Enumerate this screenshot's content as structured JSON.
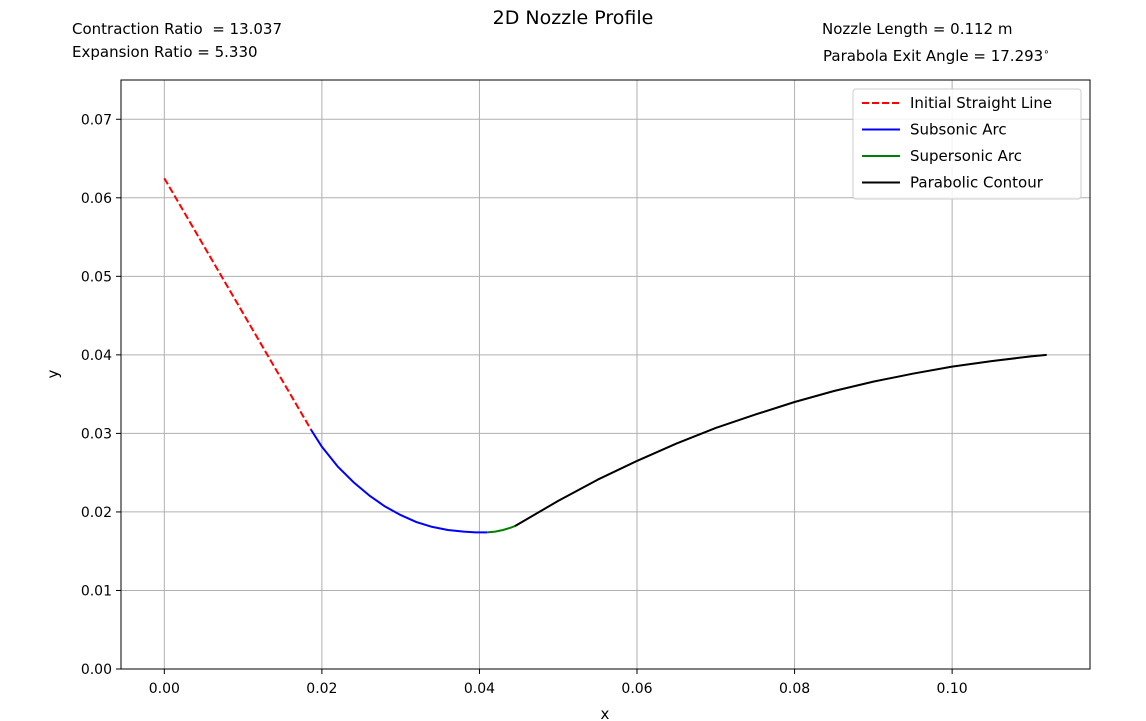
{
  "chart_data": {
    "type": "line",
    "title": "2D Nozzle Profile",
    "xlabel": "x",
    "ylabel": "y",
    "xlim": [
      -0.0055,
      0.1175
    ],
    "ylim": [
      0.0,
      0.075
    ],
    "xticks": [
      "0.00",
      "0.02",
      "0.04",
      "0.06",
      "0.08",
      "0.10"
    ],
    "yticks": [
      "0.00",
      "0.01",
      "0.02",
      "0.03",
      "0.04",
      "0.05",
      "0.06",
      "0.07"
    ],
    "grid": true,
    "legend_position": "top-right",
    "annotations": {
      "top_left": [
        "Contraction Ratio  = 13.037",
        "Expansion Ratio = 5.330"
      ],
      "top_right": [
        "Nozzle Length = 0.112 m",
        "Parabola Exit Angle = 17.293$^\\circ$"
      ]
    },
    "series": [
      {
        "name": "Initial Straight Line",
        "color": "#ff0000",
        "dash": true,
        "x": [
          0.0,
          0.0186
        ],
        "y": [
          0.0625,
          0.0305
        ]
      },
      {
        "name": "Subsonic Arc",
        "color": "#0000ff",
        "dash": false,
        "x": [
          0.0186,
          0.02,
          0.022,
          0.024,
          0.026,
          0.028,
          0.03,
          0.032,
          0.034,
          0.036,
          0.038,
          0.0395,
          0.041
        ],
        "y": [
          0.0305,
          0.0283,
          0.0258,
          0.0238,
          0.0221,
          0.0207,
          0.0196,
          0.0187,
          0.0181,
          0.0177,
          0.0175,
          0.0174,
          0.0174
        ]
      },
      {
        "name": "Supersonic Arc",
        "color": "#008000",
        "dash": false,
        "x": [
          0.041,
          0.042,
          0.043,
          0.044,
          0.0445
        ],
        "y": [
          0.0174,
          0.0175,
          0.0177,
          0.018,
          0.0182
        ]
      },
      {
        "name": "Parabolic Contour",
        "color": "#000000",
        "dash": false,
        "x": [
          0.0445,
          0.05,
          0.055,
          0.06,
          0.065,
          0.07,
          0.075,
          0.08,
          0.085,
          0.09,
          0.095,
          0.1,
          0.105,
          0.11,
          0.112
        ],
        "y": [
          0.0182,
          0.0214,
          0.0241,
          0.0265,
          0.0287,
          0.0307,
          0.0324,
          0.034,
          0.0354,
          0.0366,
          0.0376,
          0.0385,
          0.0392,
          0.0398,
          0.04
        ]
      }
    ]
  }
}
